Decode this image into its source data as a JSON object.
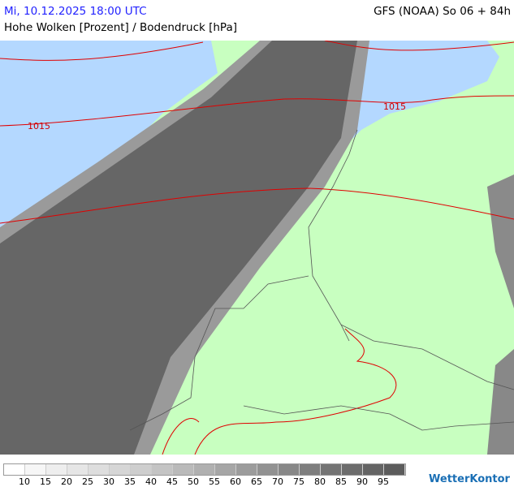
{
  "header": {
    "date": "Mi, 10.12.2025 18:00 UTC",
    "model": "GFS (NOAA) So 06 + 84h",
    "subtitle": "Hohe Wolken [Prozent] / Bodendruck [hPa]"
  },
  "map": {
    "isobar_labels": [
      "1015",
      "1015"
    ],
    "colors": {
      "land": "#c8ffc0",
      "sea": "#b4d8ff",
      "cloud": "#606060",
      "isobar": "#e00000",
      "border": "#555555"
    }
  },
  "legend": {
    "colors": [
      "#ffffff",
      "#f6f6f6",
      "#eeeeee",
      "#e6e6e6",
      "#dedede",
      "#d6d6d6",
      "#cecece",
      "#c4c4c4",
      "#bababa",
      "#b0b0b0",
      "#a6a6a6",
      "#9c9c9c",
      "#929292",
      "#888888",
      "#7e7e7e",
      "#747474",
      "#6c6c6c",
      "#646464",
      "#5c5c5c"
    ],
    "labels": [
      "10",
      "15",
      "20",
      "25",
      "30",
      "35",
      "40",
      "45",
      "50",
      "55",
      "60",
      "65",
      "70",
      "75",
      "80",
      "85",
      "90",
      "95"
    ]
  },
  "brand": "WetterKontor"
}
